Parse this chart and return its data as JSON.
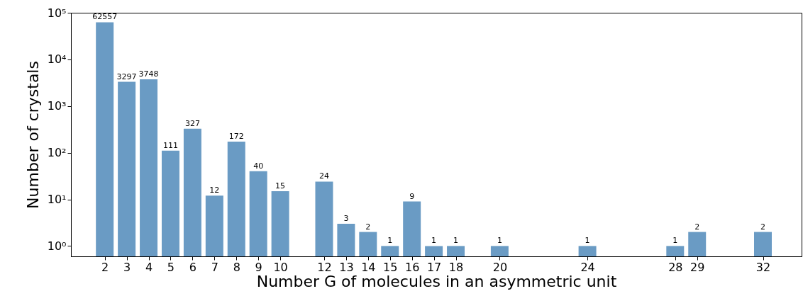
{
  "chart_data": {
    "type": "bar",
    "xlabel": "Number G of molecules in an asymmetric unit",
    "ylabel": "Number of crystals",
    "x": [
      2,
      3,
      4,
      5,
      6,
      7,
      8,
      9,
      10,
      12,
      13,
      14,
      15,
      16,
      17,
      18,
      20,
      24,
      28,
      29,
      32
    ],
    "values": [
      62557,
      3297,
      3748,
      111,
      327,
      12,
      172,
      40,
      15,
      24,
      3,
      2,
      1,
      9,
      1,
      1,
      1,
      1,
      1,
      2,
      2
    ],
    "color": "#6a9bc4",
    "data_labels": true,
    "log": "y",
    "grid": false,
    "xlim": [
      0.62,
      33.6
    ],
    "xticks": [
      2,
      3,
      4,
      5,
      6,
      7,
      8,
      9,
      10,
      12,
      13,
      14,
      15,
      16,
      17,
      18,
      20,
      24,
      28,
      29,
      32
    ],
    "ylim": [
      0.6,
      100000
    ],
    "yticks": [
      {
        "value": 1,
        "label": "10⁰"
      },
      {
        "value": 10,
        "label": "10¹"
      },
      {
        "value": 100,
        "label": "10²"
      },
      {
        "value": 1000,
        "label": "10³"
      },
      {
        "value": 10000,
        "label": "10⁴"
      },
      {
        "value": 100000,
        "label": "10⁵"
      }
    ]
  }
}
